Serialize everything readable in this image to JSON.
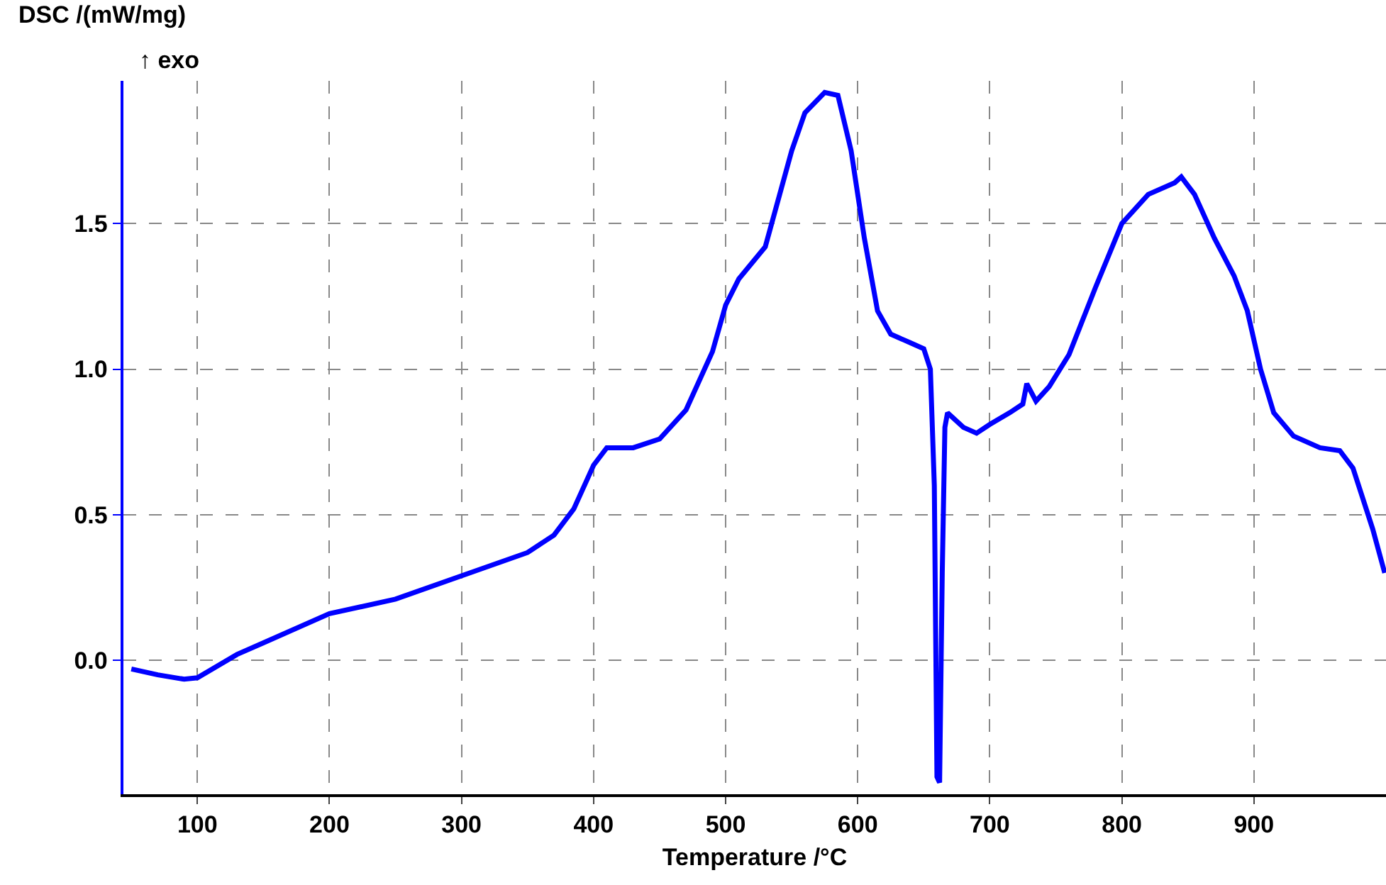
{
  "chart_data": {
    "type": "line",
    "xlabel": "Temperature /°C",
    "ylabel": "DSC /(mW/mg)",
    "annotations": [
      "↑ exo"
    ],
    "xlim": [
      44,
      1000
    ],
    "ylim": [
      -0.46,
      1.99
    ],
    "xticks": [
      100,
      200,
      300,
      400,
      500,
      600,
      700,
      800,
      900
    ],
    "yticks": [
      {
        "value": 0,
        "label": "0.0"
      },
      {
        "value": 0.5,
        "label": "0.5"
      },
      {
        "value": 1,
        "label": "1.0"
      },
      {
        "value": 1.5,
        "label": "1.5"
      }
    ],
    "grid": true,
    "marker": "none",
    "line_style": "solid",
    "series": [
      {
        "color": "#0000ff",
        "x": [
          50,
          70,
          90,
          100,
          130,
          150,
          200,
          250,
          300,
          350,
          370,
          385,
          400,
          410,
          430,
          450,
          470,
          490,
          500,
          510,
          530,
          550,
          560,
          575,
          585,
          595,
          605,
          615,
          625,
          640,
          650,
          655,
          658,
          660,
          662,
          664,
          666,
          668,
          680,
          690,
          700,
          715,
          725,
          728,
          735,
          745,
          760,
          780,
          800,
          820,
          840,
          845,
          855,
          870,
          885,
          895,
          905,
          915,
          930,
          950,
          965,
          975,
          990,
          999
        ],
        "values": [
          -0.03,
          -0.05,
          -0.065,
          -0.06,
          0.02,
          0.06,
          0.16,
          0.21,
          0.29,
          0.37,
          0.43,
          0.52,
          0.67,
          0.73,
          0.73,
          0.76,
          0.86,
          1.06,
          1.22,
          1.31,
          1.42,
          1.75,
          1.88,
          1.95,
          1.94,
          1.75,
          1.45,
          1.2,
          1.12,
          1.09,
          1.07,
          1.0,
          0.6,
          -0.4,
          -0.42,
          0.3,
          0.8,
          0.85,
          0.8,
          0.78,
          0.81,
          0.85,
          0.88,
          0.95,
          0.89,
          0.94,
          1.05,
          1.28,
          1.5,
          1.6,
          1.64,
          1.66,
          1.6,
          1.45,
          1.32,
          1.2,
          1.0,
          0.85,
          0.77,
          0.73,
          0.72,
          0.66,
          0.45,
          0.3
        ]
      }
    ]
  }
}
